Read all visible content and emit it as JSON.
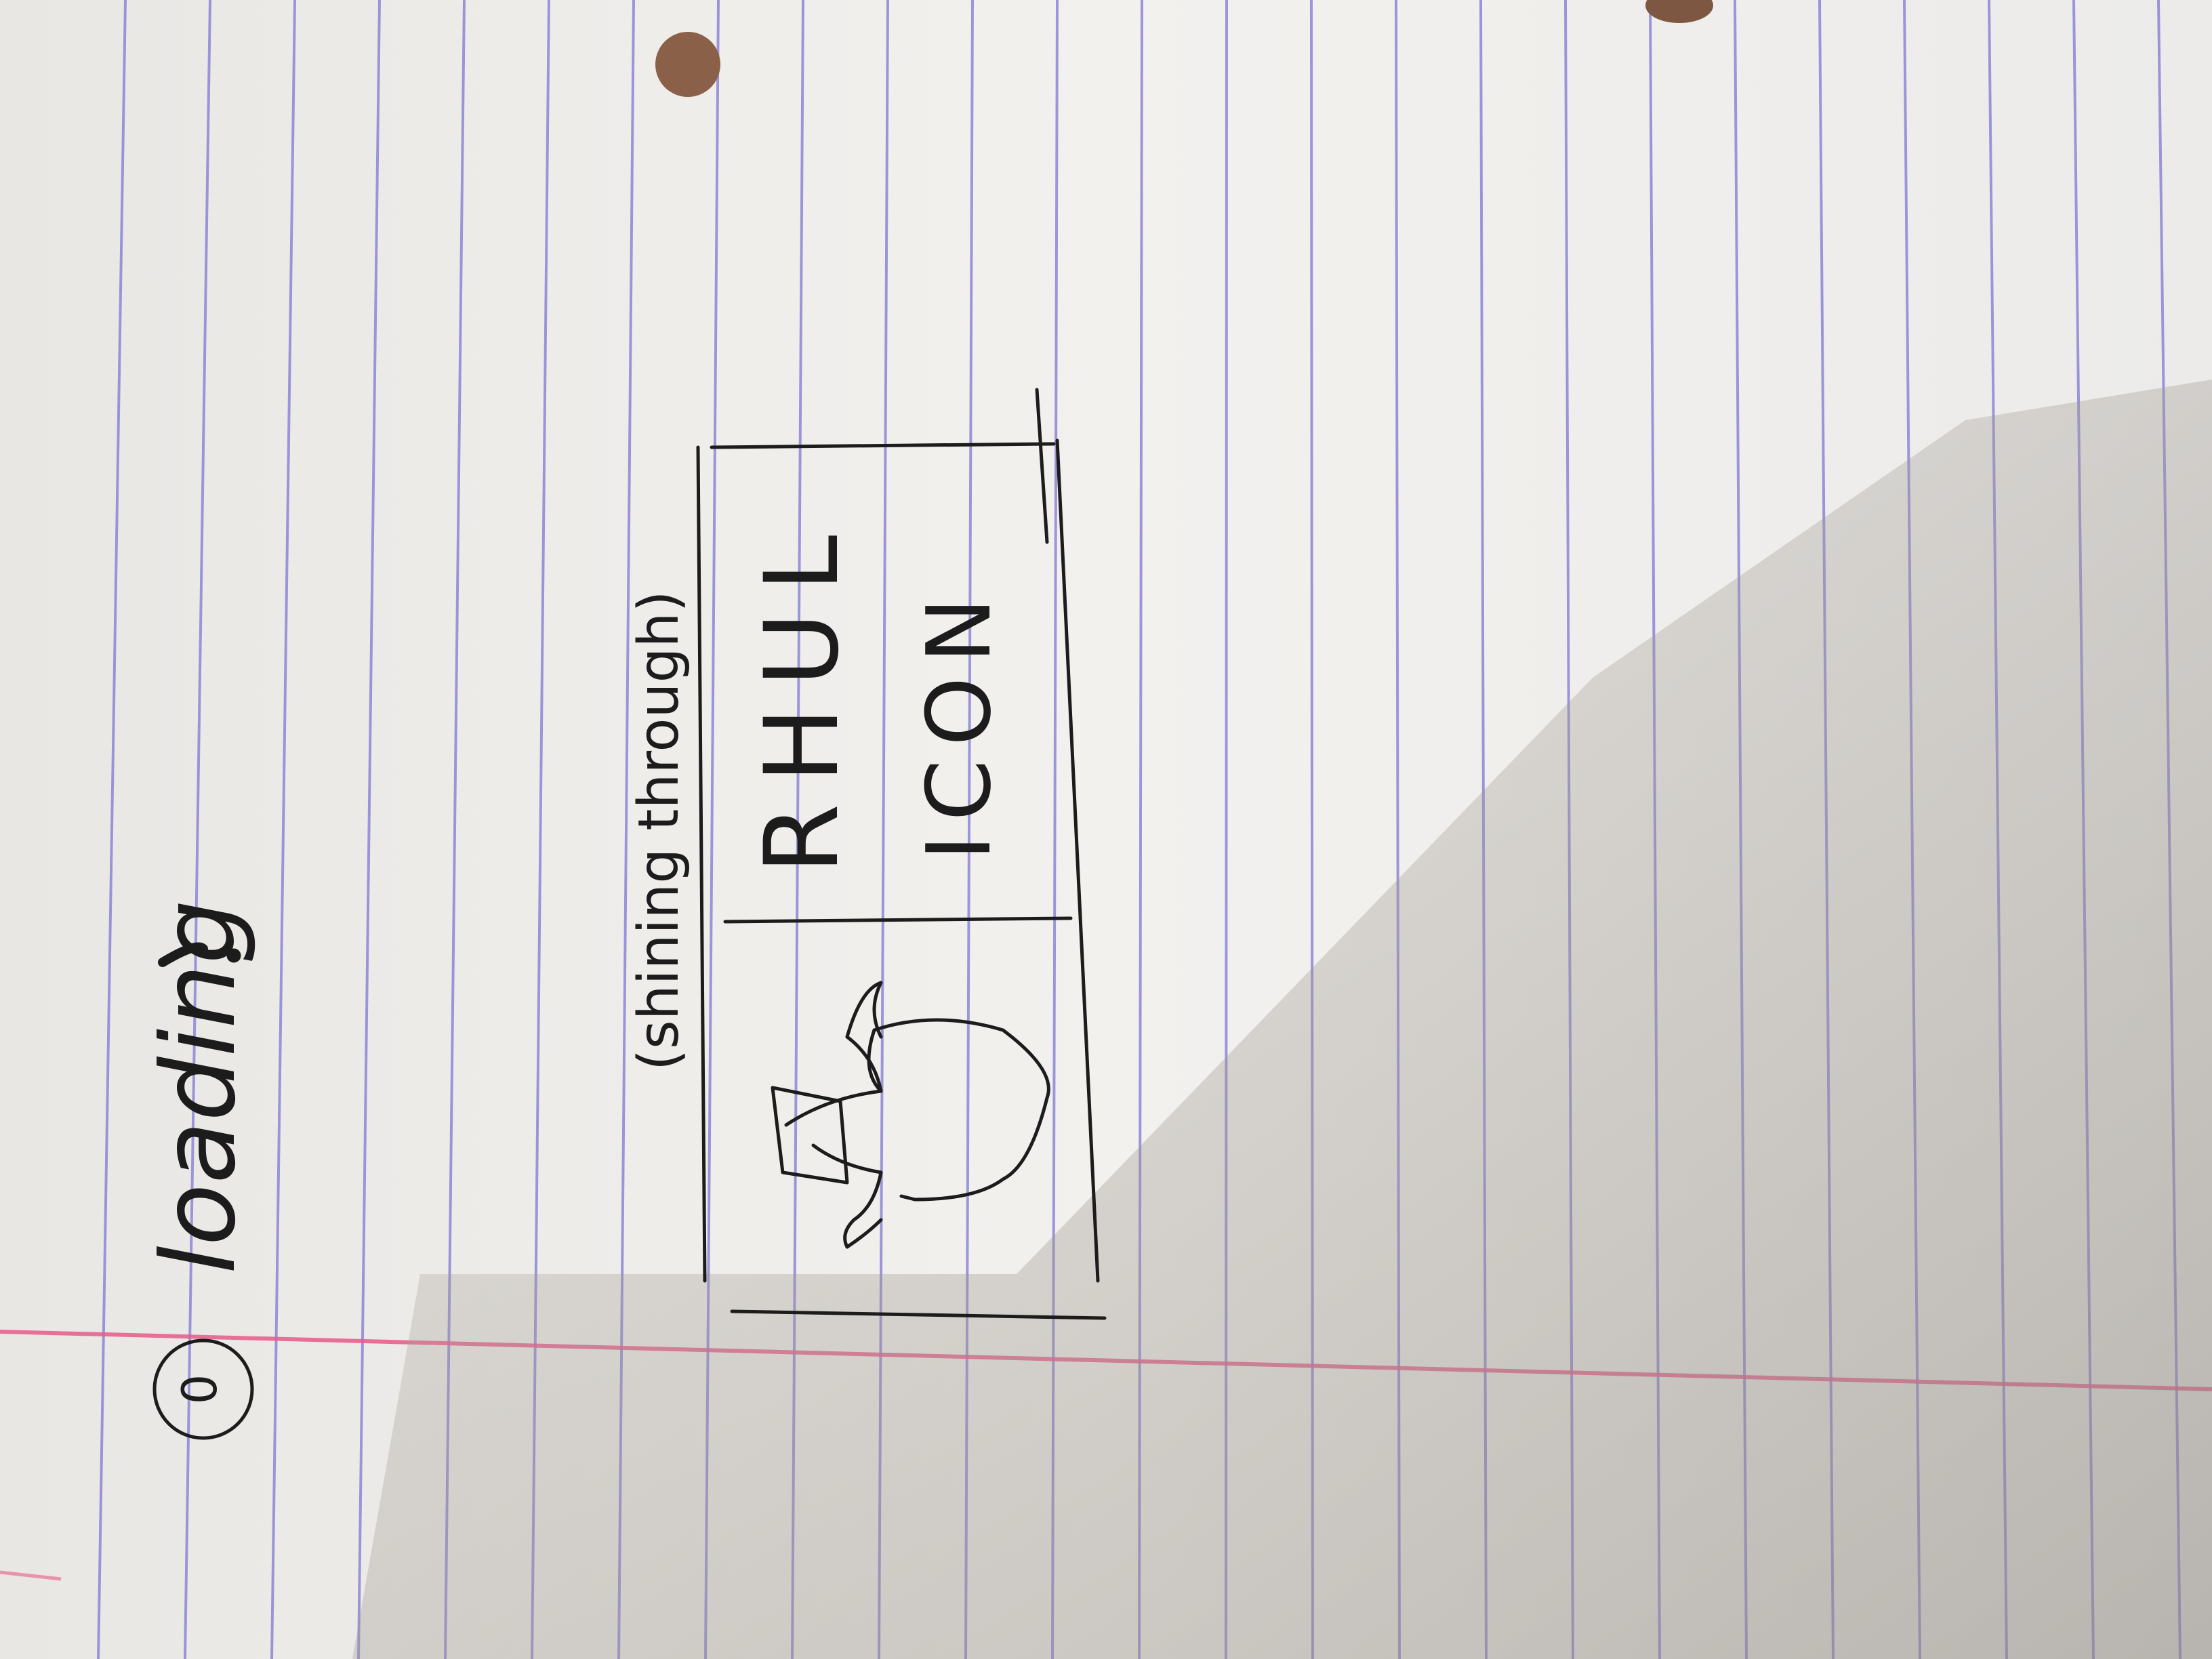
{
  "sketch": {
    "step_number": "0",
    "title": "loading",
    "annotation": "(shining through)",
    "logo_text_line1": "RHUL",
    "logo_text_line2": "ICON",
    "colors": {
      "paper": "#f1efec",
      "rule_lines": "#8c86d6",
      "margin_line": "#e85a8a",
      "ink": "#1c1c1c",
      "punch_hole": "#8a6048",
      "shadow": "#a9a39a"
    },
    "icons": [
      "graduation-mortarboard-icon",
      "shield-crest-icon",
      "handwritten-exclamation-icon"
    ]
  }
}
